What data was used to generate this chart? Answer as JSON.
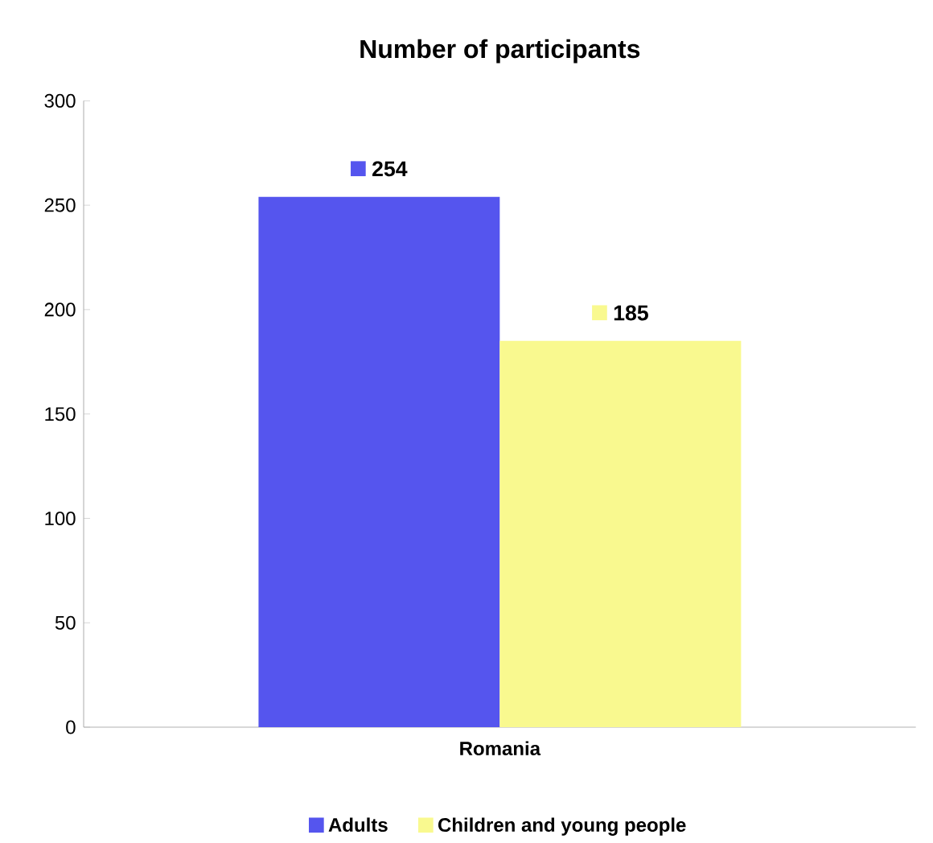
{
  "chart_data": {
    "type": "bar",
    "title": "Number of participants",
    "categories": [
      "Romania"
    ],
    "series": [
      {
        "name": "Adults",
        "color": "#5555ee",
        "values": [
          254
        ]
      },
      {
        "name": "Children and young people",
        "color": "#f9f98f",
        "values": [
          185
        ]
      }
    ],
    "ylim": [
      0,
      300
    ],
    "yticks": [
      0,
      50,
      100,
      150,
      200,
      250,
      300
    ],
    "grid": false,
    "legend": "bottom",
    "data_labels": true
  }
}
